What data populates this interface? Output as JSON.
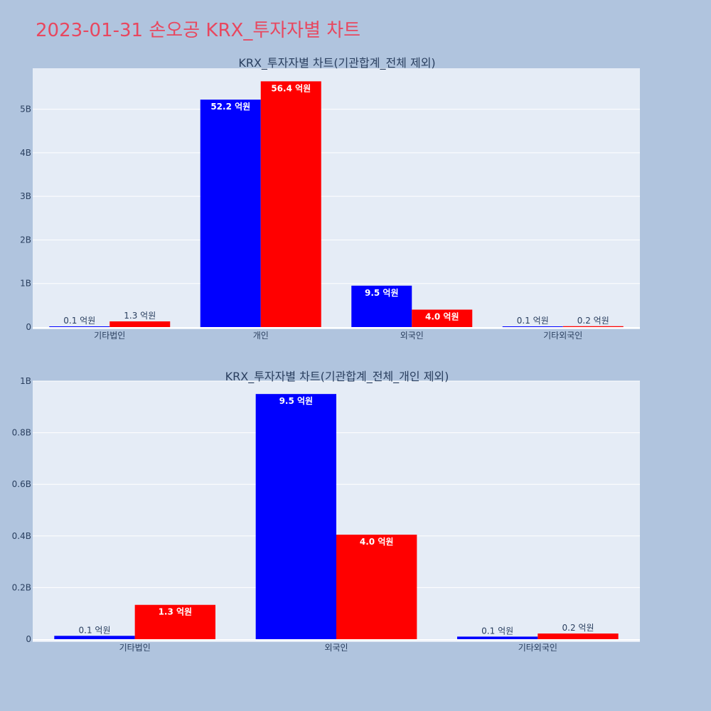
{
  "page_title": "2023-01-31 손오공 KRX_투자자별 차트",
  "colors": {
    "background": "#B0C4DE",
    "plot_bg": "#E5ECF6",
    "title": "#E8475F",
    "series_1": "#0000FF",
    "series_2": "#FF0000",
    "text": "#2A3F5F"
  },
  "chart_data": [
    {
      "type": "bar",
      "title": "KRX_투자자별 차트(기관합계_전체 제외)",
      "categories": [
        "기타법인",
        "개인",
        "외국인",
        "기타외국인"
      ],
      "series": [
        {
          "color": "#0000FF",
          "values": [
            10000000,
            5220000000,
            950000000,
            10000000
          ],
          "labels": [
            "0.1 억원",
            "52.2 억원",
            "9.5 억원",
            "0.1 억원"
          ]
        },
        {
          "color": "#FF0000",
          "values": [
            130000000,
            5640000000,
            400000000,
            20000000
          ],
          "labels": [
            "1.3 억원",
            "56.4 억원",
            "4.0 억원",
            "0.2 억원"
          ]
        }
      ],
      "yticks": [
        "0",
        "1B",
        "2B",
        "3B",
        "4B",
        "5B"
      ],
      "ytick_values": [
        0,
        1000000000,
        2000000000,
        3000000000,
        4000000000,
        5000000000
      ],
      "ylim": [
        0,
        5940000000
      ],
      "grid": true,
      "legend": "none"
    },
    {
      "type": "bar",
      "title": "KRX_투자자별 차트(기관합계_전체_개인 제외)",
      "categories": [
        "기타법인",
        "외국인",
        "기타외국인"
      ],
      "series": [
        {
          "color": "#0000FF",
          "values": [
            13000000,
            950000000,
            10000000
          ],
          "labels": [
            "0.1 억원",
            "9.5 억원",
            "0.1 억원"
          ]
        },
        {
          "color": "#FF0000",
          "values": [
            133000000,
            405000000,
            22000000
          ],
          "labels": [
            "1.3 억원",
            "4.0 억원",
            "0.2 억원"
          ]
        }
      ],
      "yticks": [
        "0",
        "0.2B",
        "0.4B",
        "0.6B",
        "0.8B",
        "1B"
      ],
      "ytick_values": [
        0,
        200000000,
        400000000,
        600000000,
        800000000,
        1000000000
      ],
      "ylim": [
        0,
        1000000000
      ],
      "grid": true,
      "legend": "none"
    }
  ]
}
